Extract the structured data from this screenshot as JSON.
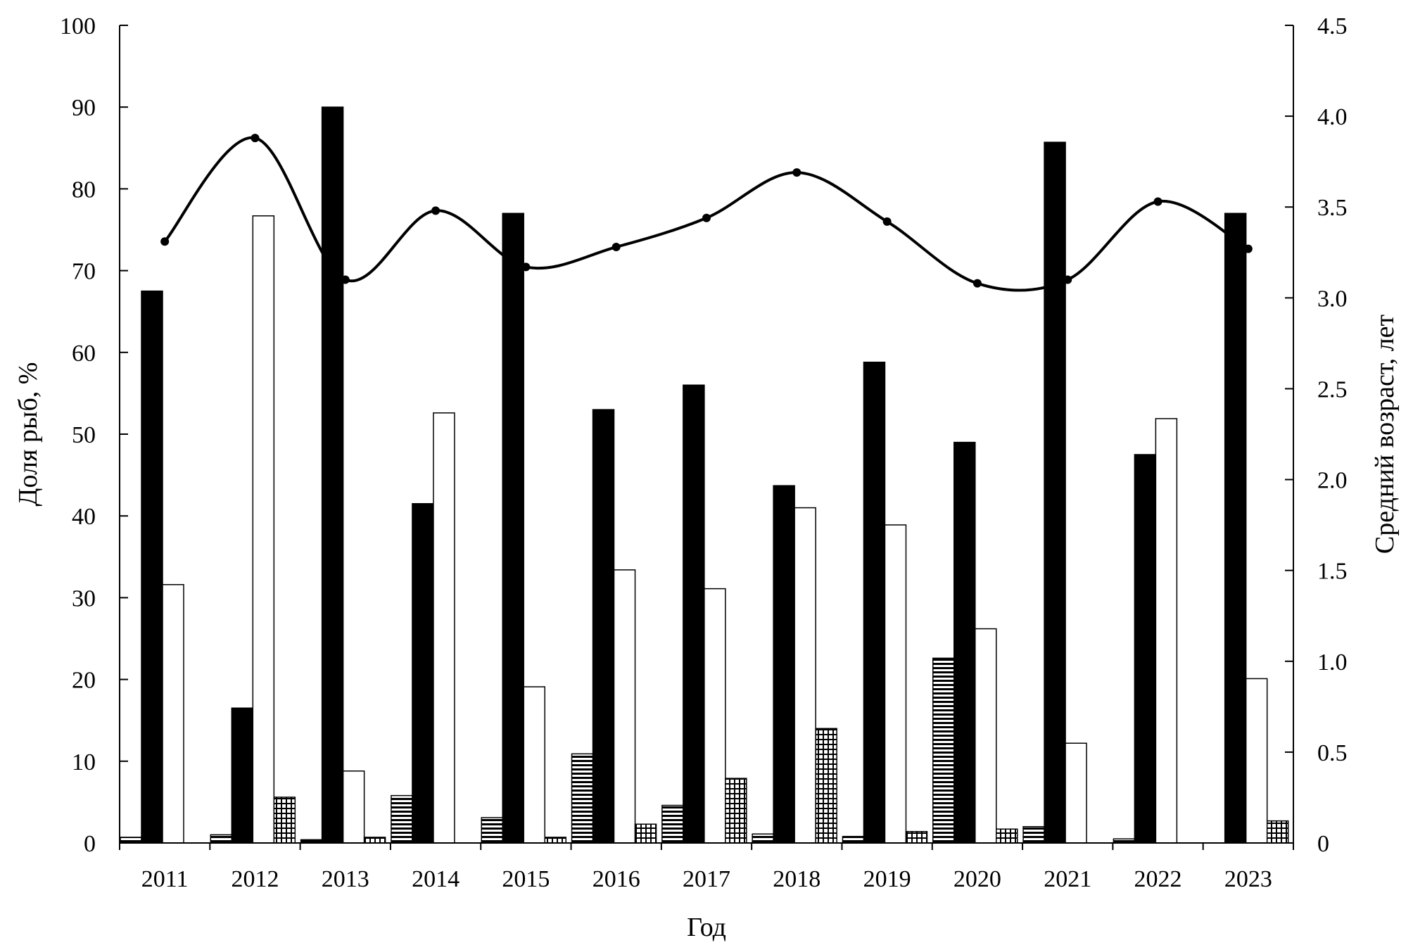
{
  "chart_data": {
    "type": "bar",
    "title": "",
    "xlabel": "Год",
    "ylabel": "Доля рыб, %",
    "y2label": "Средний возраст, лет",
    "ylim": [
      0,
      100
    ],
    "y2lim": [
      0,
      4.5
    ],
    "yticks": [
      "0",
      "10",
      "20",
      "30",
      "40",
      "50",
      "60",
      "70",
      "80",
      "90",
      "100"
    ],
    "y2ticks": [
      "0",
      "0.5",
      "1.0",
      "1.5",
      "2.0",
      "2.5",
      "3.0",
      "3.5",
      "4.0",
      "4.5"
    ],
    "grid": false,
    "legend": "none",
    "categories": [
      "2011",
      "2012",
      "2013",
      "2014",
      "2015",
      "2016",
      "2017",
      "2018",
      "2019",
      "2020",
      "2021",
      "2022",
      "2023"
    ],
    "series": [
      {
        "pattern": "horizontal-lines",
        "axis": "left",
        "values": [
          0.7,
          1.0,
          0.4,
          5.8,
          3.1,
          10.9,
          4.6,
          1.1,
          0.8,
          22.6,
          2.0,
          0.5,
          0
        ]
      },
      {
        "pattern": "solid-black",
        "axis": "left",
        "values": [
          67.5,
          16.5,
          90.0,
          41.5,
          77.0,
          53.0,
          56.0,
          43.7,
          58.8,
          49.0,
          85.7,
          47.5,
          77.0
        ]
      },
      {
        "pattern": "white",
        "axis": "left",
        "values": [
          31.6,
          76.7,
          8.8,
          52.6,
          19.1,
          33.4,
          31.1,
          41.0,
          38.9,
          26.2,
          12.2,
          51.9,
          20.1
        ]
      },
      {
        "pattern": "grid",
        "axis": "left",
        "values": [
          0,
          5.6,
          0.7,
          0,
          0.7,
          2.3,
          7.9,
          14.0,
          1.4,
          1.7,
          0,
          0,
          2.7
        ]
      },
      {
        "type": "line",
        "axis": "right",
        "values": [
          3.31,
          3.88,
          3.1,
          3.48,
          3.17,
          3.28,
          3.44,
          3.69,
          3.42,
          3.08,
          3.1,
          3.53,
          3.27
        ]
      }
    ]
  }
}
